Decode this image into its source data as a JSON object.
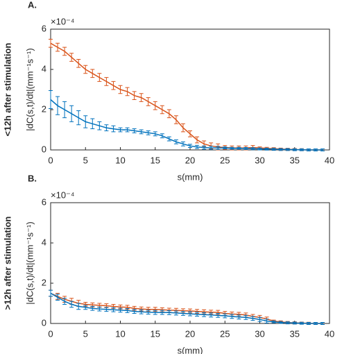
{
  "chart_data": [
    {
      "type": "errorbar",
      "panel_label": "A.",
      "row_label": "<12h after stimulation",
      "y_label": "|dC(s,t)/dt|(mm⁻¹s⁻¹)",
      "y_exponent": "×10⁻⁴",
      "x_label": "s(mm)",
      "xlim": [
        0,
        40
      ],
      "xticks": [
        0,
        5,
        10,
        15,
        20,
        25,
        30,
        35,
        40
      ],
      "ylim": [
        0,
        6
      ],
      "yticks": [
        0,
        2,
        4,
        6
      ],
      "x": [
        0,
        1,
        2,
        3,
        4,
        5,
        6,
        7,
        8,
        9,
        10,
        11,
        12,
        13,
        14,
        15,
        16,
        17,
        18,
        19,
        20,
        21,
        22,
        23,
        24,
        25,
        26,
        27,
        28,
        29,
        30,
        31,
        32,
        33,
        34,
        35,
        36,
        37,
        38,
        39
      ],
      "series": [
        {
          "color": "#d95319",
          "values": [
            5.3,
            5.1,
            4.9,
            4.6,
            4.3,
            4.0,
            3.8,
            3.6,
            3.4,
            3.2,
            3.0,
            2.9,
            2.7,
            2.6,
            2.4,
            2.2,
            2.0,
            1.8,
            1.5,
            1.1,
            0.8,
            0.5,
            0.3,
            0.2,
            0.15,
            0.12,
            0.1,
            0.1,
            0.1,
            0.12,
            0.1,
            0.08,
            0.06,
            0.04,
            0.03,
            0.02,
            0.01,
            0,
            0,
            0
          ],
          "errors": [
            0.2,
            0.2,
            0.2,
            0.2,
            0.2,
            0.2,
            0.2,
            0.2,
            0.2,
            0.2,
            0.2,
            0.2,
            0.2,
            0.2,
            0.2,
            0.2,
            0.2,
            0.2,
            0.2,
            0.2,
            0.15,
            0.15,
            0.15,
            0.15,
            0.15,
            0.1,
            0.1,
            0.1,
            0.1,
            0.1,
            0.05,
            0.05,
            0.05,
            0.05,
            0.05,
            0.05,
            0.05,
            0.05,
            0.05,
            0.05
          ]
        },
        {
          "color": "#0072bd",
          "values": [
            2.5,
            2.2,
            2.0,
            1.8,
            1.6,
            1.4,
            1.3,
            1.2,
            1.1,
            1.05,
            1.0,
            1.0,
            0.95,
            0.9,
            0.85,
            0.8,
            0.7,
            0.55,
            0.4,
            0.3,
            0.2,
            0.15,
            0.12,
            0.1,
            0.1,
            0.1,
            0.08,
            0.08,
            0.07,
            0.06,
            0.05,
            0.04,
            0.03,
            0.02,
            0.02,
            0.01,
            0.01,
            0,
            0,
            0
          ],
          "errors": [
            0.45,
            0.45,
            0.4,
            0.4,
            0.35,
            0.3,
            0.25,
            0.2,
            0.15,
            0.15,
            0.1,
            0.1,
            0.1,
            0.1,
            0.1,
            0.1,
            0.1,
            0.1,
            0.1,
            0.1,
            0.08,
            0.08,
            0.08,
            0.08,
            0.08,
            0.05,
            0.05,
            0.05,
            0.05,
            0.05,
            0.05,
            0.05,
            0.05,
            0.05,
            0.05,
            0.05,
            0.05,
            0.05,
            0.05,
            0.05
          ]
        }
      ]
    },
    {
      "type": "errorbar",
      "panel_label": "B.",
      "row_label": ">12h after stimulation",
      "y_label": "|dC(s,t)/dt|(mm⁻¹s⁻¹)",
      "y_exponent": "×10⁻⁴",
      "x_label": "s(mm)",
      "xlim": [
        0,
        40
      ],
      "xticks": [
        0,
        5,
        10,
        15,
        20,
        25,
        30,
        35,
        40
      ],
      "ylim": [
        0,
        6
      ],
      "yticks": [
        0,
        2,
        4,
        6
      ],
      "x": [
        0,
        1,
        2,
        3,
        4,
        5,
        6,
        7,
        8,
        9,
        10,
        11,
        12,
        13,
        14,
        15,
        16,
        17,
        18,
        19,
        20,
        21,
        22,
        23,
        24,
        25,
        26,
        27,
        28,
        29,
        30,
        31,
        32,
        33,
        34,
        35,
        36,
        37,
        38,
        39
      ],
      "series": [
        {
          "color": "#d95319",
          "values": [
            1.5,
            1.35,
            1.2,
            1.1,
            1.0,
            0.95,
            0.92,
            0.9,
            0.88,
            0.85,
            0.82,
            0.8,
            0.75,
            0.72,
            0.7,
            0.7,
            0.68,
            0.66,
            0.65,
            0.63,
            0.62,
            0.6,
            0.58,
            0.56,
            0.55,
            0.5,
            0.47,
            0.45,
            0.42,
            0.35,
            0.3,
            0.22,
            0.12,
            0.08,
            0.05,
            0.03,
            0.02,
            0.01,
            0,
            0
          ],
          "errors": [
            0.15,
            0.15,
            0.15,
            0.15,
            0.15,
            0.1,
            0.1,
            0.1,
            0.1,
            0.1,
            0.1,
            0.1,
            0.1,
            0.1,
            0.1,
            0.1,
            0.1,
            0.1,
            0.1,
            0.1,
            0.1,
            0.1,
            0.1,
            0.1,
            0.1,
            0.1,
            0.1,
            0.1,
            0.1,
            0.1,
            0.1,
            0.1,
            0.05,
            0.05,
            0.05,
            0.05,
            0.05,
            0.05,
            0.05,
            0.05
          ]
        },
        {
          "color": "#0072bd",
          "values": [
            1.5,
            1.3,
            1.1,
            0.95,
            0.85,
            0.8,
            0.75,
            0.72,
            0.7,
            0.68,
            0.66,
            0.64,
            0.6,
            0.58,
            0.56,
            0.55,
            0.55,
            0.54,
            0.52,
            0.5,
            0.48,
            0.46,
            0.44,
            0.42,
            0.4,
            0.38,
            0.35,
            0.32,
            0.3,
            0.25,
            0.2,
            0.12,
            0.08,
            0.05,
            0.03,
            0.02,
            0.01,
            0,
            0,
            0
          ],
          "errors": [
            0.15,
            0.15,
            0.15,
            0.15,
            0.15,
            0.1,
            0.1,
            0.1,
            0.1,
            0.1,
            0.1,
            0.1,
            0.1,
            0.1,
            0.1,
            0.1,
            0.1,
            0.1,
            0.1,
            0.1,
            0.1,
            0.1,
            0.1,
            0.1,
            0.1,
            0.1,
            0.1,
            0.1,
            0.1,
            0.1,
            0.1,
            0.1,
            0.05,
            0.05,
            0.05,
            0.05,
            0.05,
            0.05,
            0.05,
            0.05
          ]
        }
      ]
    }
  ]
}
